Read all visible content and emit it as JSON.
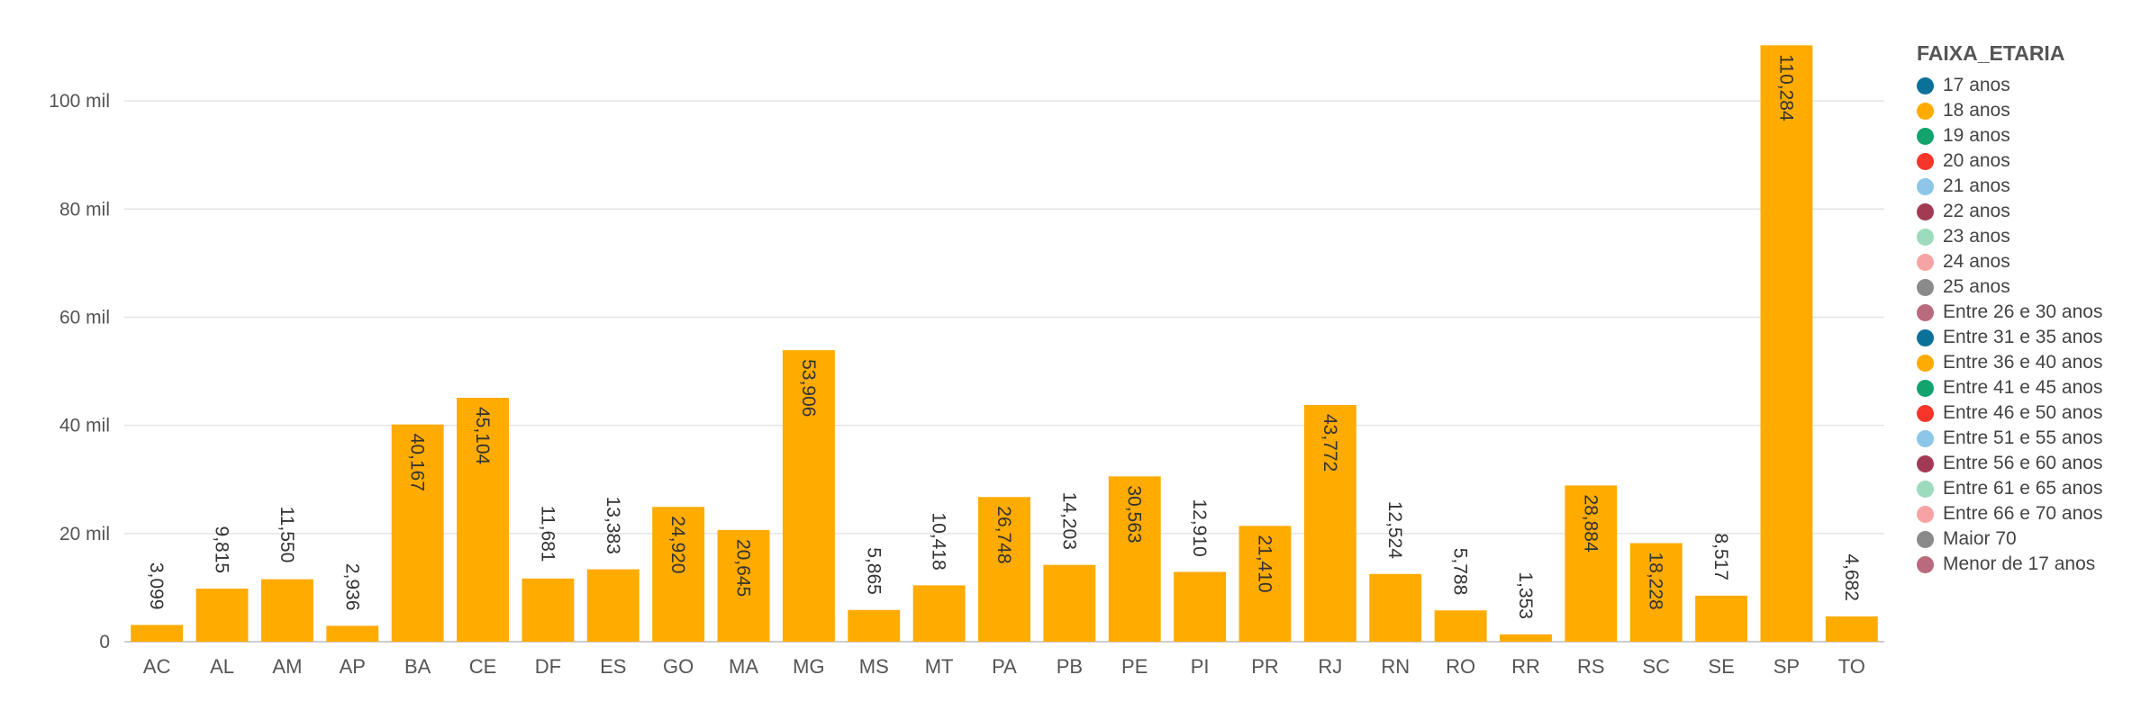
{
  "chart_data": {
    "type": "bar",
    "categories": [
      "AC",
      "AL",
      "AM",
      "AP",
      "BA",
      "CE",
      "DF",
      "ES",
      "GO",
      "MA",
      "MG",
      "MS",
      "MT",
      "PA",
      "PB",
      "PE",
      "PI",
      "PR",
      "RJ",
      "RN",
      "RO",
      "RR",
      "RS",
      "SC",
      "SE",
      "SP",
      "TO"
    ],
    "series": [
      {
        "name": "18 anos",
        "color": "#FFAB00",
        "values": [
          3099,
          9815,
          11550,
          2936,
          40167,
          45104,
          11681,
          13383,
          24920,
          20645,
          53906,
          5865,
          10418,
          26748,
          14203,
          30563,
          12910,
          21410,
          43772,
          12524,
          5788,
          1353,
          28884,
          18228,
          8517,
          110284,
          4682
        ],
        "labels": [
          "3,099",
          "9,815",
          "11,550",
          "2,936",
          "40,167",
          "45,104",
          "11,681",
          "13,383",
          "24,920",
          "20,645",
          "53,906",
          "5,865",
          "10,418",
          "26,748",
          "14,203",
          "30,563",
          "12,910",
          "21,410",
          "43,772",
          "12,524",
          "5,788",
          "1,353",
          "28,884",
          "18,228",
          "8,517",
          "110,284",
          "4,682"
        ]
      }
    ],
    "ylim": [
      0,
      112000
    ],
    "yticks": [
      {
        "value": 0,
        "label": "0"
      },
      {
        "value": 20000,
        "label": "20 mil"
      },
      {
        "value": 40000,
        "label": "40 mil"
      },
      {
        "value": 60000,
        "label": "60 mil"
      },
      {
        "value": 80000,
        "label": "80 mil"
      },
      {
        "value": 100000,
        "label": "100 mil"
      }
    ],
    "grid": true,
    "legend": {
      "title": "FAIXA_ETARIA",
      "position": "right",
      "items": [
        {
          "label": "17 anos",
          "color": "#0A7198"
        },
        {
          "label": "18 anos",
          "color": "#FFAB00"
        },
        {
          "label": "19 anos",
          "color": "#12A36F"
        },
        {
          "label": "20 anos",
          "color": "#F8352A"
        },
        {
          "label": "21 anos",
          "color": "#8CC6E8"
        },
        {
          "label": "22 anos",
          "color": "#A13A52"
        },
        {
          "label": "23 anos",
          "color": "#9CDBBC"
        },
        {
          "label": "24 anos",
          "color": "#F7A3A3"
        },
        {
          "label": "25 anos",
          "color": "#8A8A8A"
        },
        {
          "label": "Entre 26 e 30 anos",
          "color": "#B96A7C"
        },
        {
          "label": "Entre 31 e 35 anos",
          "color": "#0A7198"
        },
        {
          "label": "Entre 36 e 40 anos",
          "color": "#FFAB00"
        },
        {
          "label": "Entre 41 e 45 anos",
          "color": "#12A36F"
        },
        {
          "label": "Entre 46 e 50 anos",
          "color": "#F8352A"
        },
        {
          "label": "Entre 51 e 55 anos",
          "color": "#8CC6E8"
        },
        {
          "label": "Entre 56 e 60 anos",
          "color": "#A13A52"
        },
        {
          "label": "Entre 61 e 65 anos",
          "color": "#9CDBBC"
        },
        {
          "label": "Entre 66 e 70 anos",
          "color": "#F7A3A3"
        },
        {
          "label": "Maior 70",
          "color": "#8A8A8A"
        },
        {
          "label": "Menor de 17 anos",
          "color": "#B96A7C"
        }
      ]
    }
  }
}
